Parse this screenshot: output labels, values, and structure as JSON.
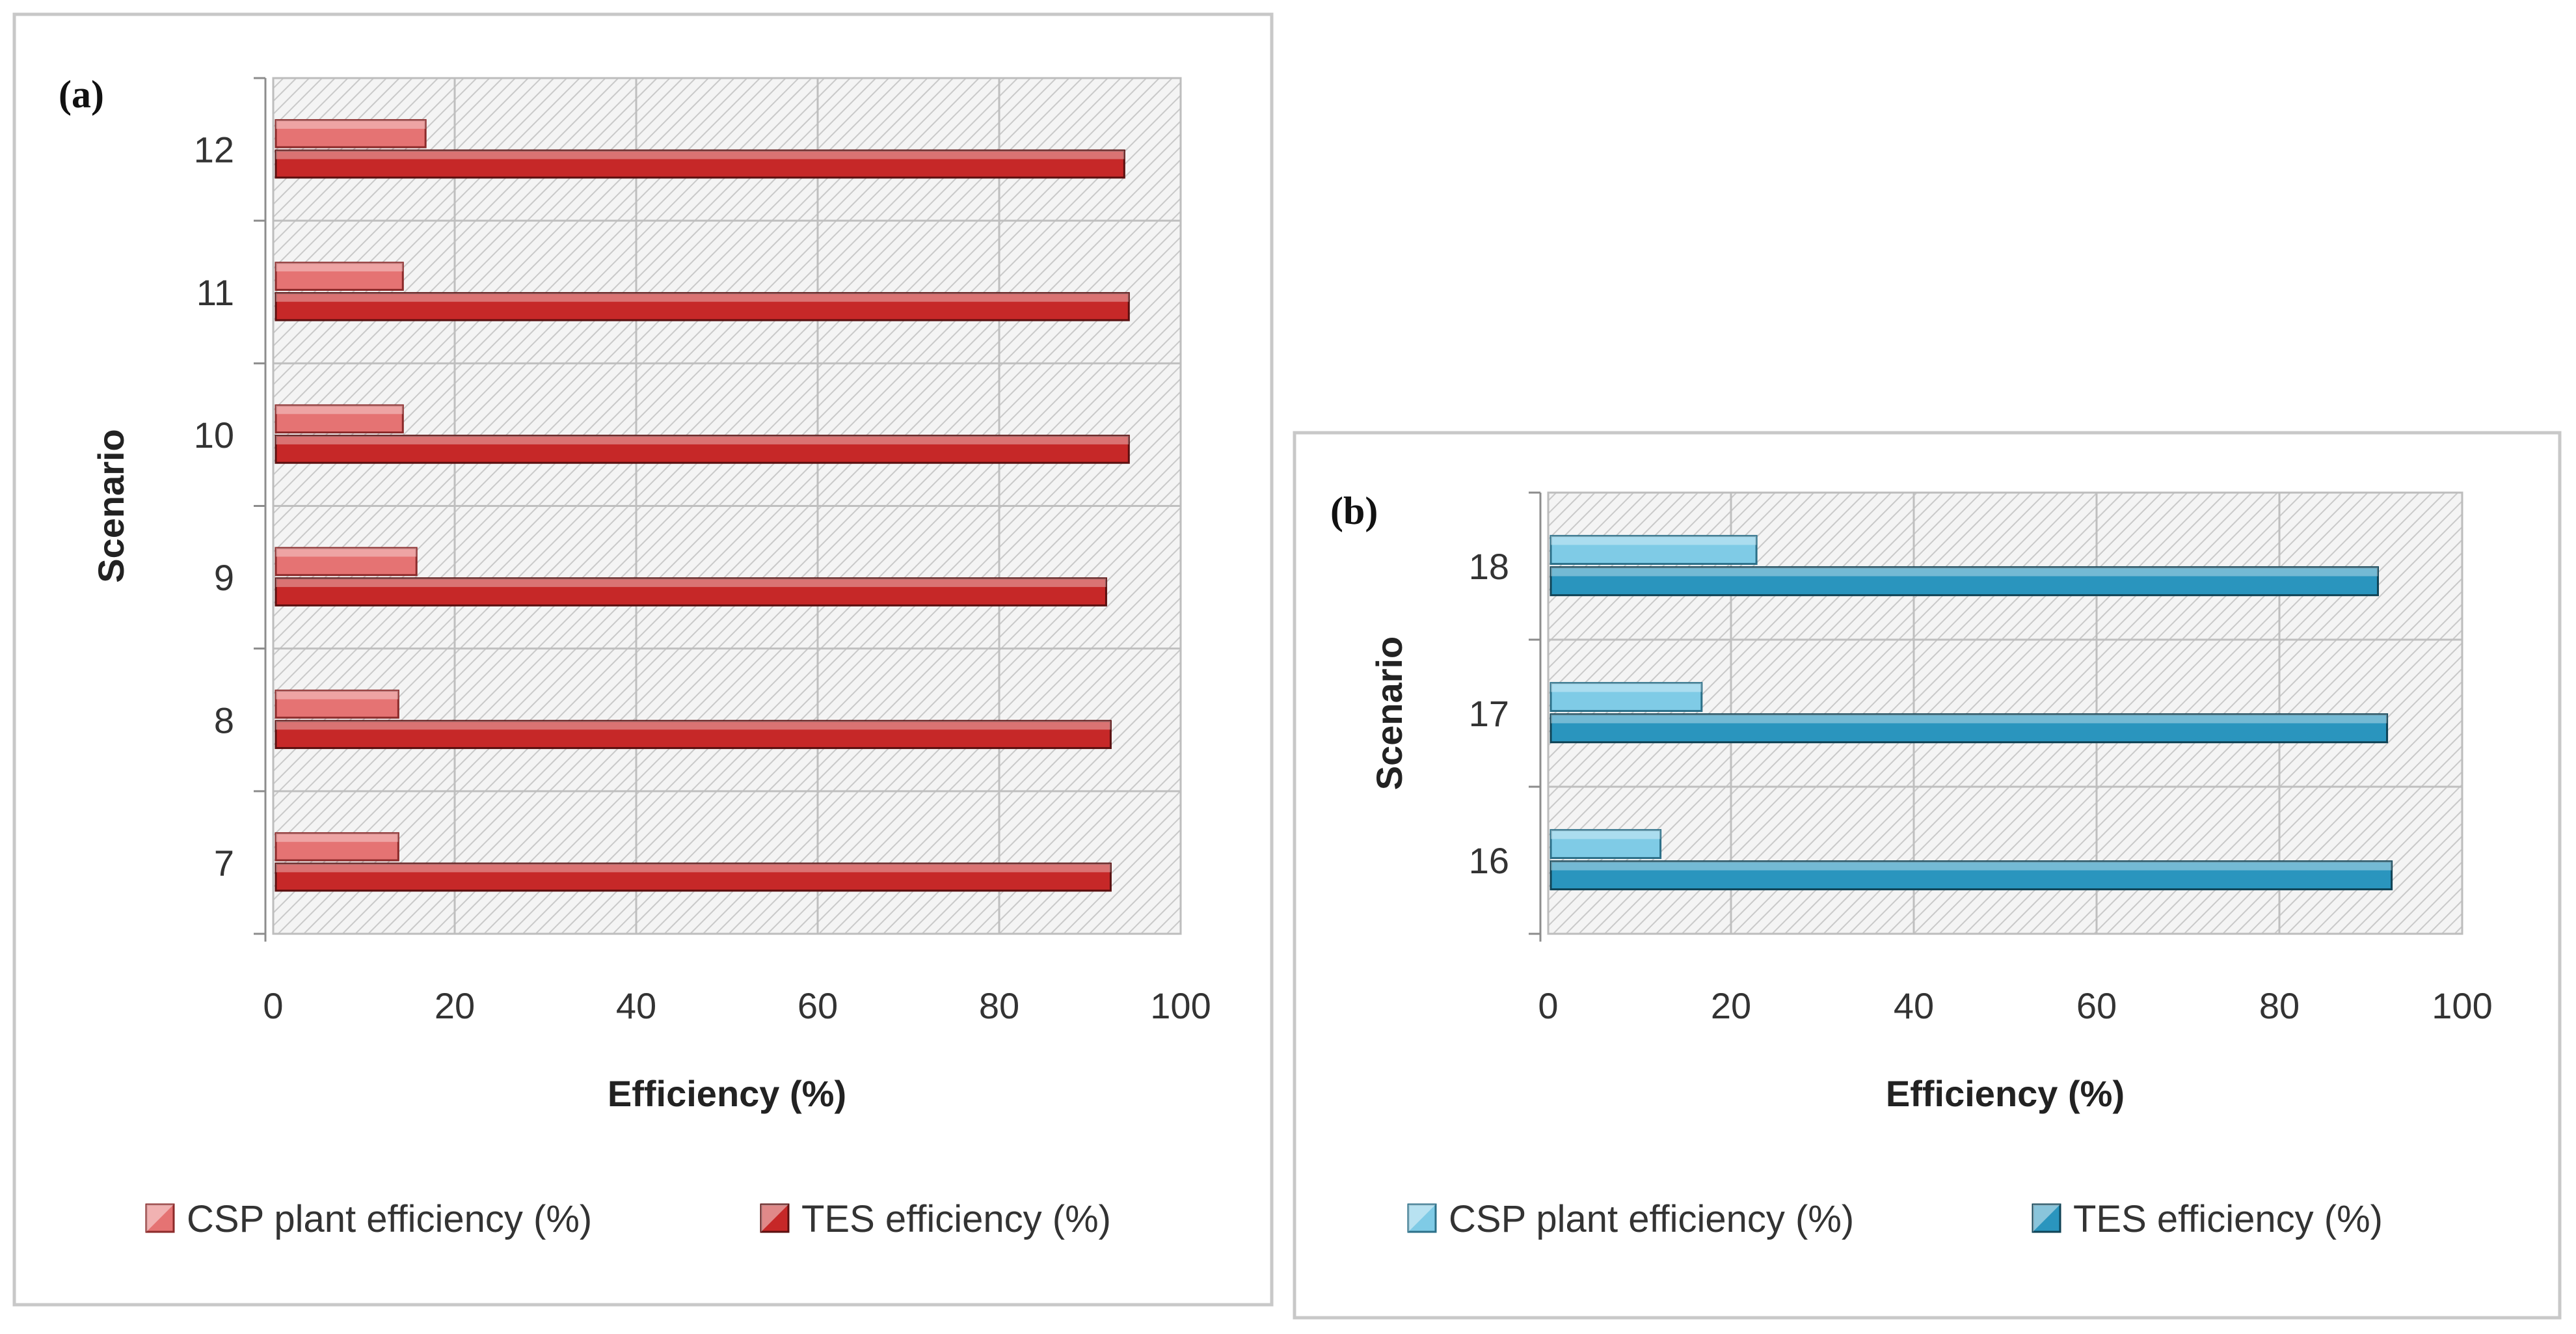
{
  "chart_data": [
    {
      "type": "bar",
      "orientation": "horizontal",
      "panel_label": "(a)",
      "categories": [
        "7",
        "8",
        "9",
        "10",
        "11",
        "12"
      ],
      "series": [
        {
          "name": "CSP plant efficiency (%)",
          "values": [
            13.5,
            13.5,
            15.5,
            14,
            14,
            16.5
          ],
          "color": "#e57373",
          "edge": "#8b2a2a"
        },
        {
          "name": "TES efficiency (%)",
          "values": [
            92,
            92,
            91.5,
            94,
            94,
            93.5
          ],
          "color": "#c62828",
          "edge": "#5a0f0f"
        }
      ],
      "xlabel": "Efficiency (%)",
      "ylabel": "Scenario",
      "xlim": [
        0,
        100
      ],
      "xticks": [
        "0",
        "20",
        "40",
        "60",
        "80",
        "100"
      ],
      "legend_position": "bottom"
    },
    {
      "type": "bar",
      "orientation": "horizontal",
      "panel_label": "(b)",
      "categories": [
        "16",
        "17",
        "18"
      ],
      "series": [
        {
          "name": "CSP plant efficiency (%)",
          "values": [
            12,
            16.5,
            22.5
          ],
          "color": "#7fcbe6",
          "edge": "#2b6f88"
        },
        {
          "name": "TES efficiency (%)",
          "values": [
            92,
            91.5,
            90.5
          ],
          "color": "#2a95be",
          "edge": "#0f4356"
        }
      ],
      "xlabel": "Efficiency (%)",
      "ylabel": "Scenario",
      "xlim": [
        0,
        100
      ],
      "xticks": [
        "0",
        "20",
        "40",
        "60",
        "80",
        "100"
      ],
      "legend_position": "bottom"
    }
  ]
}
